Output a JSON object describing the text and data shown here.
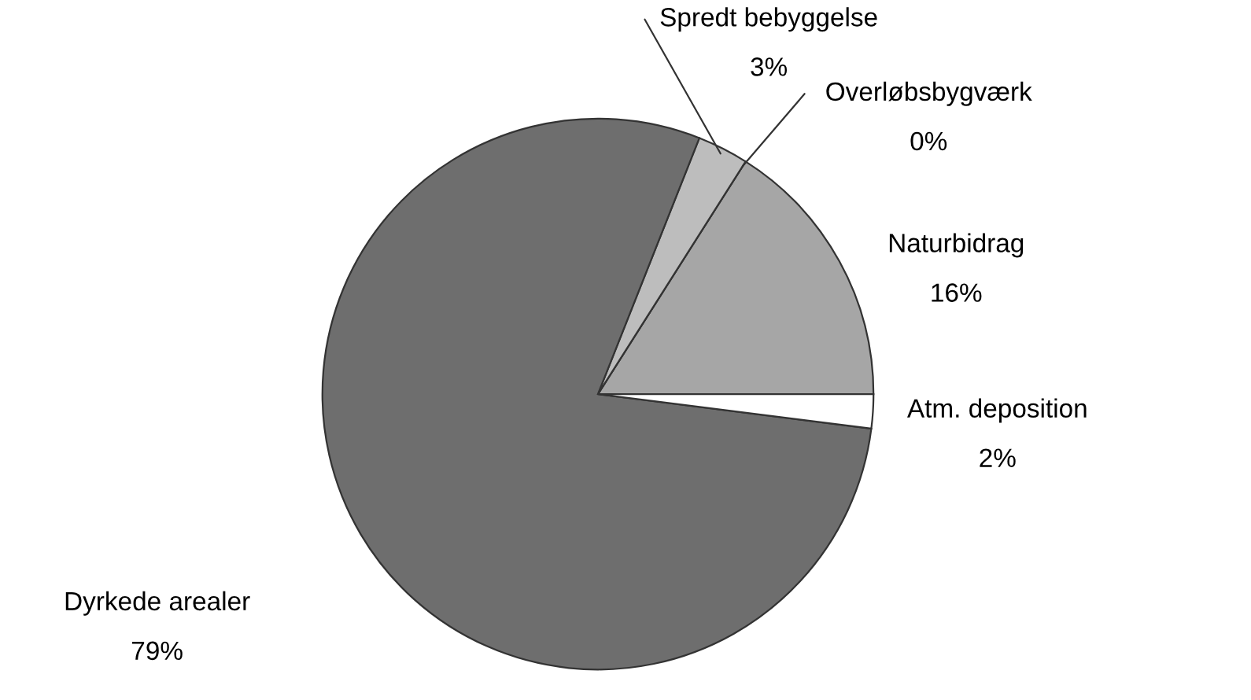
{
  "chart_data": {
    "type": "pie",
    "categories": [
      "Naturbidrag",
      "Overløbsbygværk",
      "Spredt bebyggelse",
      "Dyrkede arealer",
      "Atm. deposition"
    ],
    "values": [
      16,
      0,
      3,
      79,
      2
    ],
    "colors": [
      "#a6a6a6",
      "#8c8c8c",
      "#bdbdbd",
      "#6e6e6e",
      "#ffffff"
    ],
    "value_labels": [
      "16%",
      "0%",
      "3%",
      "79%",
      "2%"
    ]
  }
}
